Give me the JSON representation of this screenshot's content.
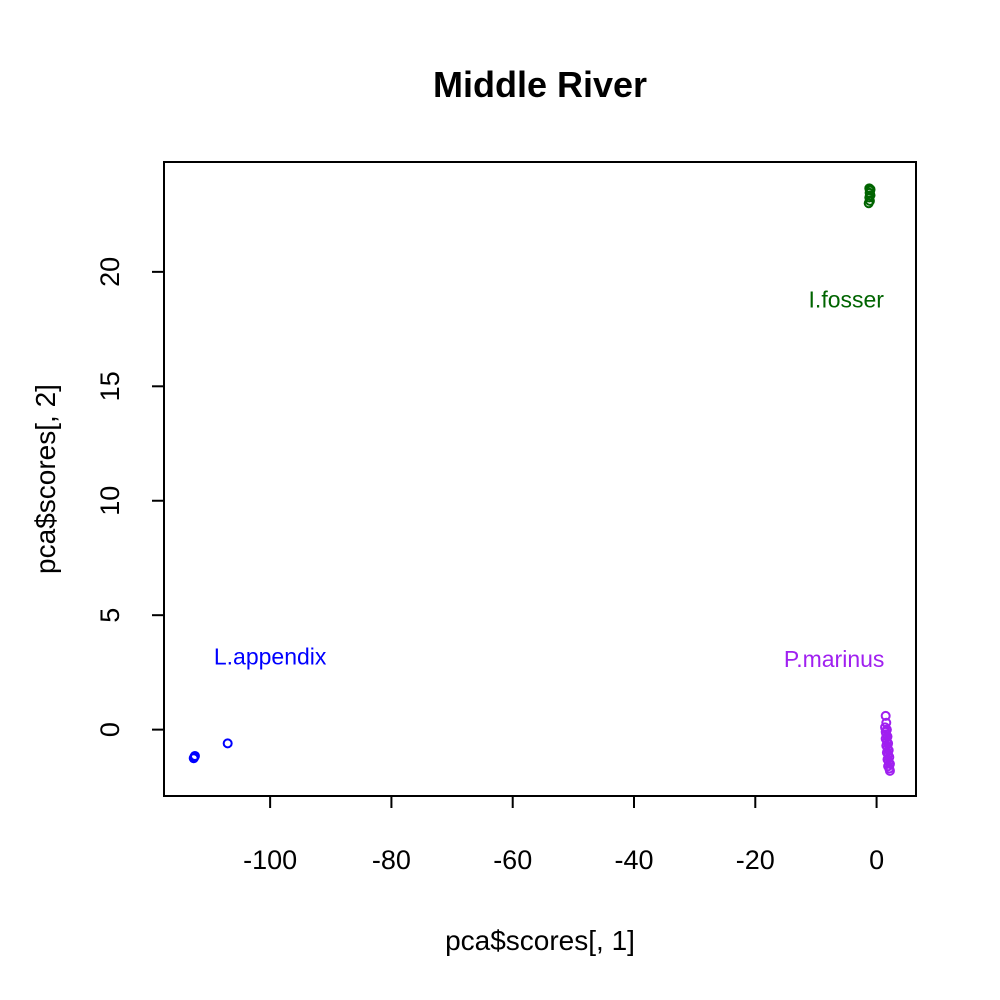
{
  "chart_data": {
    "type": "scatter",
    "title": "Middle River",
    "xlabel": "pca$scores[, 1]",
    "ylabel": "pca$scores[, 2]",
    "xlim": [
      -117.5,
      6.5
    ],
    "ylim": [
      -2.9,
      24.8
    ],
    "x_ticks": [
      -100,
      -80,
      -60,
      -40,
      -20,
      0
    ],
    "y_ticks": [
      0,
      5,
      10,
      15,
      20
    ],
    "grid": false,
    "legend": "none",
    "series": [
      {
        "name": "L.appendix",
        "color": "#0000ff",
        "label_pos": [
          -100,
          3.1
        ],
        "points": [
          [
            -112.5,
            -1.2
          ],
          [
            -112.4,
            -1.15
          ],
          [
            -112.6,
            -1.25
          ],
          [
            -107.0,
            -0.6
          ]
        ]
      },
      {
        "name": "I.fosser",
        "color": "#006400",
        "label_pos": [
          -5,
          18.7
        ],
        "points": [
          [
            -1.3,
            23.0
          ],
          [
            -1.1,
            23.1
          ],
          [
            -1.2,
            23.25
          ],
          [
            -1.0,
            23.35
          ],
          [
            -1.15,
            23.45
          ],
          [
            -1.05,
            23.55
          ],
          [
            -1.2,
            23.65
          ],
          [
            -1.0,
            23.6
          ]
        ]
      },
      {
        "name": "P.marinus",
        "color": "#a020f0",
        "label_pos": [
          -7,
          3.0
        ],
        "points": [
          [
            1.5,
            0.6
          ],
          [
            1.6,
            0.3
          ],
          [
            1.4,
            0.1
          ],
          [
            1.7,
            0.0
          ],
          [
            1.5,
            -0.1
          ],
          [
            1.6,
            -0.2
          ],
          [
            1.8,
            -0.3
          ],
          [
            1.5,
            -0.4
          ],
          [
            1.7,
            -0.5
          ],
          [
            1.9,
            -0.6
          ],
          [
            1.6,
            -0.7
          ],
          [
            1.8,
            -0.8
          ],
          [
            2.0,
            -0.9
          ],
          [
            1.7,
            -1.0
          ],
          [
            1.9,
            -1.1
          ],
          [
            2.1,
            -1.2
          ],
          [
            1.8,
            -1.3
          ],
          [
            2.0,
            -1.4
          ],
          [
            2.2,
            -1.5
          ],
          [
            1.9,
            -1.6
          ],
          [
            2.1,
            -1.7
          ],
          [
            2.2,
            -1.8
          ]
        ]
      }
    ]
  }
}
